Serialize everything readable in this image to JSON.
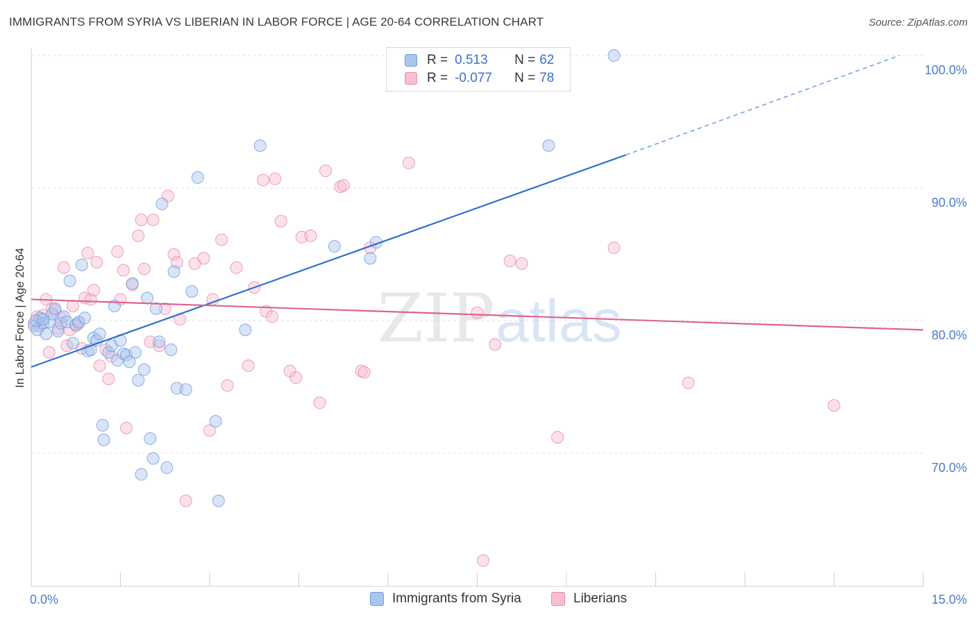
{
  "header": {
    "title": "IMMIGRANTS FROM SYRIA VS LIBERIAN IN LABOR FORCE | AGE 20-64 CORRELATION CHART",
    "source": "Source: ZipAtlas.com"
  },
  "watermark": {
    "zip": "ZIP",
    "atlas": "atlas"
  },
  "legend": {
    "rows": [
      {
        "r_label": "R =",
        "r_value": "0.513",
        "n_label": "N =",
        "n_value": "62"
      },
      {
        "r_label": "R =",
        "r_value": "-0.077",
        "n_label": "N =",
        "n_value": "78"
      }
    ]
  },
  "bottom_legend": {
    "syria": "Immigrants from Syria",
    "liberians": "Liberians"
  },
  "colors": {
    "syria_fill": "#aac6ee",
    "syria_stroke": "#6e9be0",
    "syria_line": "#2f6fcc",
    "liberian_fill": "#f7bfd1",
    "liberian_stroke": "#e88aa8",
    "liberian_line": "#e0628e",
    "tick_text": "#4a7bd0",
    "grid": "#e2e2e2"
  },
  "chart_data": {
    "type": "scatter",
    "title": "IMMIGRANTS FROM SYRIA VS LIBERIAN IN LABOR FORCE | AGE 20-64 CORRELATION CHART",
    "xlabel": "",
    "ylabel": "In Labor Force | Age 20-64",
    "xlim": [
      0,
      15
    ],
    "ylim": [
      60.5,
      101.5
    ],
    "x_tick_labels": [
      {
        "value": 0,
        "label": "0.0%"
      },
      {
        "value": 15,
        "label": "15.0%"
      }
    ],
    "x_minor_ticks": [
      0,
      1.5,
      3,
      4.5,
      6,
      7.5,
      9,
      10.5,
      12,
      13.5,
      15
    ],
    "y_ticks": [
      {
        "value": 70,
        "label": "70.0%"
      },
      {
        "value": 80,
        "label": "80.0%"
      },
      {
        "value": 90,
        "label": "90.0%"
      },
      {
        "value": 100,
        "label": "100.0%"
      }
    ],
    "grid": true,
    "legend_position": "top-center",
    "series": [
      {
        "name": "Immigrants from Syria",
        "points": [
          [
            0.05,
            79.6
          ],
          [
            0.1,
            79.3
          ],
          [
            0.15,
            80.2
          ],
          [
            0.2,
            79.8
          ],
          [
            0.25,
            79.0
          ],
          [
            0.3,
            79.9
          ],
          [
            0.35,
            80.5
          ],
          [
            0.4,
            80.9
          ],
          [
            0.45,
            79.2
          ],
          [
            0.5,
            79.8
          ],
          [
            0.55,
            80.3
          ],
          [
            0.6,
            79.9
          ],
          [
            0.65,
            83.0
          ],
          [
            0.7,
            78.3
          ],
          [
            0.75,
            79.7
          ],
          [
            0.8,
            79.9
          ],
          [
            0.85,
            84.2
          ],
          [
            0.9,
            80.2
          ],
          [
            0.95,
            77.7
          ],
          [
            1.0,
            77.8
          ],
          [
            1.05,
            78.7
          ],
          [
            1.1,
            78.5
          ],
          [
            1.15,
            79.0
          ],
          [
            1.2,
            72.1
          ],
          [
            1.22,
            71.0
          ],
          [
            1.3,
            77.6
          ],
          [
            1.35,
            78.1
          ],
          [
            1.4,
            81.1
          ],
          [
            1.45,
            77.0
          ],
          [
            1.5,
            78.5
          ],
          [
            1.55,
            77.5
          ],
          [
            1.6,
            77.4
          ],
          [
            1.65,
            76.9
          ],
          [
            1.7,
            82.8
          ],
          [
            1.75,
            77.6
          ],
          [
            1.8,
            75.5
          ],
          [
            1.85,
            68.4
          ],
          [
            1.9,
            76.3
          ],
          [
            1.95,
            81.7
          ],
          [
            2.0,
            71.1
          ],
          [
            2.05,
            69.6
          ],
          [
            2.1,
            80.9
          ],
          [
            2.15,
            78.4
          ],
          [
            2.2,
            88.8
          ],
          [
            2.28,
            68.9
          ],
          [
            2.35,
            77.8
          ],
          [
            2.4,
            83.7
          ],
          [
            2.45,
            74.9
          ],
          [
            2.6,
            74.8
          ],
          [
            2.7,
            82.2
          ],
          [
            2.8,
            90.8
          ],
          [
            3.1,
            72.4
          ],
          [
            3.15,
            66.4
          ],
          [
            3.6,
            79.3
          ],
          [
            3.85,
            93.2
          ],
          [
            5.1,
            85.6
          ],
          [
            5.7,
            84.7
          ],
          [
            5.8,
            85.9
          ],
          [
            8.7,
            93.2
          ],
          [
            9.8,
            100.0
          ],
          [
            0.08,
            80.0
          ],
          [
            0.2,
            80.1
          ]
        ]
      },
      {
        "name": "Liberians",
        "points": [
          [
            0.05,
            79.8
          ],
          [
            0.1,
            80.3
          ],
          [
            0.15,
            79.6
          ],
          [
            0.2,
            80.4
          ],
          [
            0.25,
            81.6
          ],
          [
            0.3,
            77.6
          ],
          [
            0.35,
            80.9
          ],
          [
            0.4,
            80.8
          ],
          [
            0.45,
            79.4
          ],
          [
            0.5,
            80.2
          ],
          [
            0.55,
            84.0
          ],
          [
            0.6,
            78.1
          ],
          [
            0.65,
            79.3
          ],
          [
            0.7,
            81.1
          ],
          [
            0.75,
            79.6
          ],
          [
            0.8,
            79.8
          ],
          [
            0.85,
            77.9
          ],
          [
            0.9,
            81.7
          ],
          [
            0.95,
            85.1
          ],
          [
            1.0,
            81.6
          ],
          [
            1.05,
            82.3
          ],
          [
            1.1,
            84.4
          ],
          [
            1.15,
            76.6
          ],
          [
            1.25,
            77.8
          ],
          [
            1.3,
            75.6
          ],
          [
            1.35,
            77.3
          ],
          [
            1.45,
            85.2
          ],
          [
            1.5,
            81.6
          ],
          [
            1.55,
            83.8
          ],
          [
            1.6,
            71.9
          ],
          [
            1.7,
            82.7
          ],
          [
            1.8,
            86.4
          ],
          [
            1.85,
            87.6
          ],
          [
            1.9,
            83.9
          ],
          [
            2.0,
            78.4
          ],
          [
            2.05,
            87.6
          ],
          [
            2.15,
            78.1
          ],
          [
            2.25,
            80.9
          ],
          [
            2.3,
            89.4
          ],
          [
            2.4,
            85.0
          ],
          [
            2.45,
            84.4
          ],
          [
            2.5,
            80.1
          ],
          [
            2.6,
            66.4
          ],
          [
            2.75,
            84.3
          ],
          [
            2.9,
            84.7
          ],
          [
            3.0,
            71.7
          ],
          [
            3.05,
            81.6
          ],
          [
            3.2,
            86.1
          ],
          [
            3.3,
            75.1
          ],
          [
            3.45,
            84.0
          ],
          [
            3.65,
            76.6
          ],
          [
            3.75,
            82.5
          ],
          [
            3.9,
            90.6
          ],
          [
            3.95,
            80.7
          ],
          [
            4.05,
            80.3
          ],
          [
            4.1,
            90.7
          ],
          [
            4.2,
            87.5
          ],
          [
            4.35,
            76.2
          ],
          [
            4.45,
            75.7
          ],
          [
            4.55,
            86.3
          ],
          [
            4.7,
            86.4
          ],
          [
            4.85,
            73.8
          ],
          [
            4.95,
            91.3
          ],
          [
            5.2,
            90.1
          ],
          [
            5.25,
            90.2
          ],
          [
            5.55,
            76.2
          ],
          [
            5.6,
            76.1
          ],
          [
            5.7,
            85.5
          ],
          [
            6.35,
            91.9
          ],
          [
            7.5,
            80.6
          ],
          [
            7.6,
            61.9
          ],
          [
            7.8,
            78.2
          ],
          [
            8.05,
            84.5
          ],
          [
            8.25,
            84.3
          ],
          [
            8.85,
            71.2
          ],
          [
            9.8,
            85.5
          ],
          [
            11.05,
            75.3
          ],
          [
            13.5,
            73.6
          ]
        ]
      }
    ],
    "trend_lines": [
      {
        "series": "Immigrants from Syria",
        "solid": [
          [
            0,
            76.5
          ],
          [
            10.0,
            92.5
          ]
        ],
        "dashed": [
          [
            10.0,
            92.5
          ],
          [
            14.6,
            100.0
          ]
        ]
      },
      {
        "series": "Liberians",
        "solid": [
          [
            0,
            81.6
          ],
          [
            15,
            79.3
          ]
        ]
      }
    ]
  }
}
